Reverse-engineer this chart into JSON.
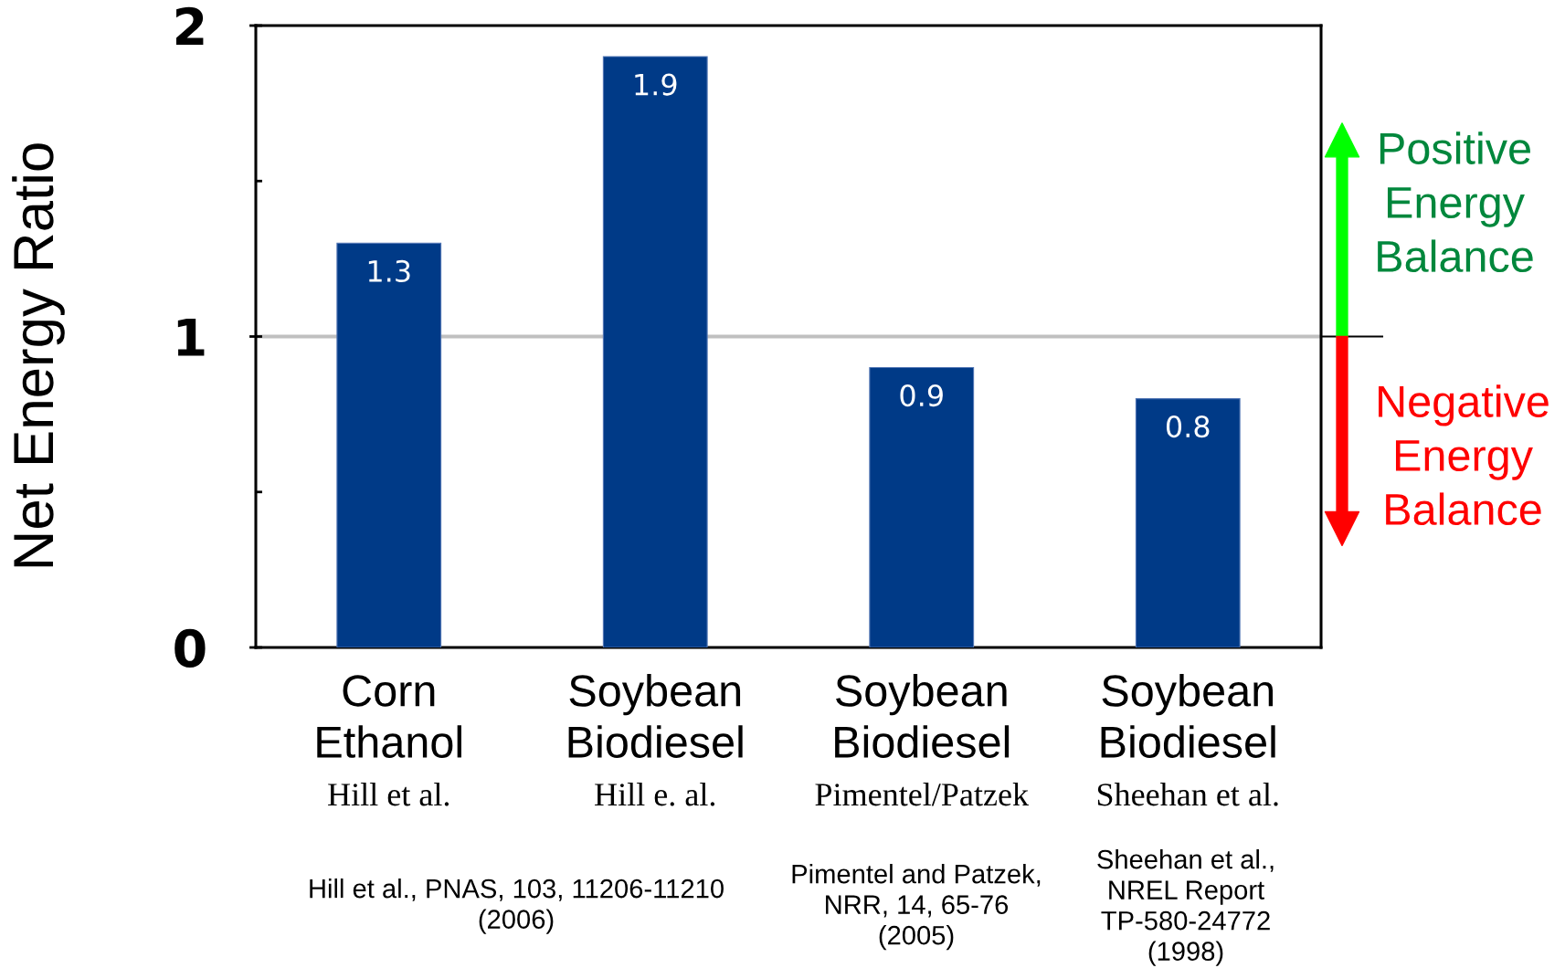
{
  "chart_data": {
    "type": "bar",
    "ylabel": "Net Energy Ratio",
    "categories": [
      "Corn\nEthanol\nHill et al.",
      "Soybean\nBiodiesel\nHill e. al.",
      "Soybean\nBiodiesel\nPimentel/Patzek",
      "Soybean\nBiodiesel\nSheehan et al."
    ],
    "values": [
      1.3,
      1.9,
      0.9,
      0.8
    ],
    "color": "#003a87",
    "data_labels": true,
    "ylim": [
      0,
      2
    ],
    "yticks": [
      0,
      {
        "value": 0.5,
        "label": null
      },
      1,
      {
        "value": 1.5,
        "label": null
      },
      2
    ],
    "ref_lines": [
      {
        "axis": "y",
        "value": 1,
        "color": "#c0c0c0"
      }
    ],
    "annotations": [
      "Hill et al., PNAS, 103, 11206-11210\n(2006)",
      "Pimentel and Patzek,\nNRR, 14, 65-76\n(2005)",
      "Sheehan et al.,\nNREL Report\nTP-580-24772\n(1998)",
      "Positive\nEnergy\nBalance",
      "Negative\nEnergy\nBalance"
    ]
  }
}
